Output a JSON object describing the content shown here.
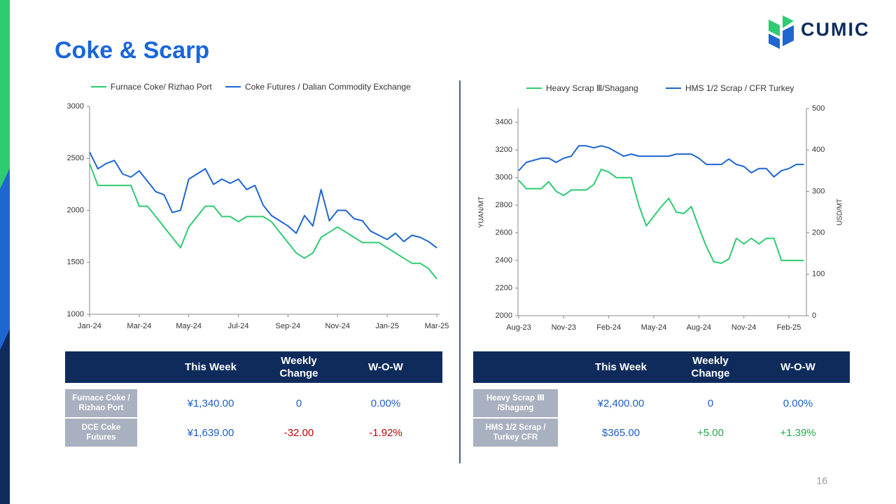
{
  "title": "Coke & Scarp",
  "logo": "CUMIC",
  "page_number": "16",
  "chart_data": [
    {
      "type": "line",
      "categories": [
        "Jan-24",
        null,
        null,
        null,
        null,
        null,
        "Mar-24",
        null,
        null,
        null,
        null,
        null,
        "May-24",
        null,
        null,
        null,
        null,
        null,
        "Jul-24",
        null,
        null,
        null,
        null,
        null,
        "Sep-24",
        null,
        null,
        null,
        null,
        null,
        "Nov-24",
        null,
        null,
        null,
        null,
        null,
        "Jan-25",
        null,
        null,
        null,
        null,
        null,
        "Mar-25"
      ],
      "ylim": [
        1000,
        3000
      ],
      "yticks": [
        1000,
        1500,
        2000,
        2500,
        3000
      ],
      "series": [
        {
          "name": "Furnace Coke/ Rizhao Port",
          "color": "#2ecc71",
          "values": [
            2450,
            2240,
            2240,
            2240,
            2240,
            2240,
            2040,
            2040,
            1940,
            1840,
            1740,
            1640,
            1840,
            1940,
            2040,
            2040,
            1940,
            1940,
            1890,
            1940,
            1940,
            1940,
            1890,
            1790,
            1690,
            1590,
            1540,
            1590,
            1740,
            1790,
            1840,
            1790,
            1740,
            1690,
            1690,
            1690,
            1640,
            1590,
            1540,
            1490,
            1490,
            1440,
            1340
          ]
        },
        {
          "name": "Coke Futures / Dalian Commodity Exchange",
          "color": "#1f66d1",
          "values": [
            2560,
            2400,
            2450,
            2480,
            2350,
            2320,
            2380,
            2280,
            2180,
            2150,
            1980,
            2000,
            2300,
            2350,
            2400,
            2250,
            2300,
            2260,
            2300,
            2200,
            2240,
            2050,
            1950,
            1900,
            1850,
            1780,
            1950,
            1850,
            2200,
            1900,
            2000,
            2000,
            1920,
            1900,
            1800,
            1760,
            1720,
            1780,
            1700,
            1760,
            1740,
            1700,
            1639
          ]
        }
      ]
    },
    {
      "type": "line",
      "categories": [
        "Aug-23",
        null,
        null,
        null,
        null,
        null,
        "Nov-23",
        null,
        null,
        null,
        null,
        null,
        "Feb-24",
        null,
        null,
        null,
        null,
        null,
        "May-24",
        null,
        null,
        null,
        null,
        null,
        "Aug-24",
        null,
        null,
        null,
        null,
        null,
        "Nov-24",
        null,
        null,
        null,
        null,
        null,
        "Feb-25",
        null,
        null
      ],
      "ylim": [
        2000,
        3500
      ],
      "yticks": [
        2000,
        2200,
        2400,
        2600,
        2800,
        3000,
        3200,
        3400
      ],
      "y_label": "YUAN/MT",
      "y2lim": [
        0,
        500
      ],
      "y2ticks": [
        0,
        100,
        200,
        300,
        400,
        500
      ],
      "y2_label": "USD/MT",
      "series": [
        {
          "name": "Heavy Scrap Ⅲ/Shagang",
          "color": "#2ecc71",
          "values": [
            2980,
            2920,
            2920,
            2920,
            2970,
            2900,
            2870,
            2910,
            2910,
            2910,
            2950,
            3060,
            3040,
            3000,
            3000,
            3000,
            2800,
            2650,
            2720,
            2790,
            2850,
            2750,
            2740,
            2790,
            2640,
            2500,
            2390,
            2380,
            2410,
            2560,
            2520,
            2560,
            2520,
            2560,
            2560,
            2400,
            2400,
            2400,
            2400
          ]
        },
        {
          "name": "HMS 1/2 Scrap / CFR Turkey",
          "color": "#1f66d1",
          "axis": "y2",
          "values": [
            350,
            370,
            375,
            380,
            380,
            370,
            380,
            385,
            410,
            410,
            405,
            410,
            405,
            395,
            385,
            390,
            385,
            385,
            385,
            385,
            385,
            390,
            390,
            390,
            380,
            365,
            365,
            365,
            378,
            365,
            360,
            345,
            355,
            355,
            335,
            350,
            355,
            365,
            365
          ]
        }
      ]
    }
  ],
  "tables": [
    {
      "headers": [
        "This Week",
        "Weekly Change",
        "W-O-W"
      ],
      "rows": [
        {
          "label": "Furnace Coke / Rizhao Port",
          "cells": [
            "¥1,340.00",
            "0",
            "0.00%"
          ],
          "colors": [
            "#1f5fc6",
            "#1f5fc6",
            "#1f5fc6"
          ]
        },
        {
          "label": "DCE Coke Futures",
          "cells": [
            "¥1,639.00",
            "-32.00",
            "-1.92%"
          ],
          "colors": [
            "#1f5fc6",
            "#c00000",
            "#c00000"
          ]
        }
      ]
    },
    {
      "headers": [
        "This Week",
        "Weekly Change",
        "W-O-W"
      ],
      "rows": [
        {
          "label": "Heavy Scrap Ⅲ /Shagang",
          "cells": [
            "¥2,400.00",
            "0",
            "0.00%"
          ],
          "colors": [
            "#1f5fc6",
            "#1f5fc6",
            "#1f5fc6"
          ]
        },
        {
          "label": "HMS 1/2 Scrap / Turkey CFR",
          "cells": [
            "$365.00",
            "+5.00",
            "+1.39%"
          ],
          "colors": [
            "#1f5fc6",
            "#22a84a",
            "#22a84a"
          ]
        }
      ]
    }
  ]
}
